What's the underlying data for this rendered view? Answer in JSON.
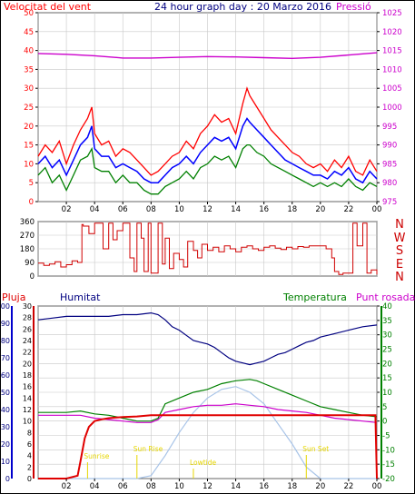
{
  "colors": {
    "wind_speed": "#ff0000",
    "wind_avg": "#0000ff",
    "wind_gust_low": "#008000",
    "pressure": "#cc00cc",
    "direction": "#d00000",
    "rain": "#e00000",
    "humidity": "#000080",
    "temperature": "#008000",
    "dew_point": "#cc00cc",
    "solar": "#a8c4e8",
    "sun_marks": "#e6d600",
    "grid": "#c8c8c8",
    "frame": "#000000"
  },
  "chart_data": [
    {
      "id": "wind",
      "type": "line",
      "title": "24 hour graph day : 20 Marzo 2016",
      "left_label": "Velocitat del vent",
      "right_label": "Pressió",
      "x_tick_labels": [
        "02",
        "04",
        "06",
        "08",
        "10",
        "12",
        "14",
        "16",
        "18",
        "20",
        "22",
        "00"
      ],
      "x_range_hours": [
        0,
        24
      ],
      "y_left_ticks": [
        "0",
        "5",
        "10",
        "15",
        "20",
        "25",
        "30",
        "35",
        "40",
        "45",
        "50"
      ],
      "y_left_range": [
        0,
        50
      ],
      "y_right_ticks": [
        "975",
        "980",
        "985",
        "990",
        "995",
        "1000",
        "1005",
        "1010",
        "1015",
        "1020",
        "1025"
      ],
      "y_right_range": [
        975,
        1025
      ],
      "grid": true,
      "series": [
        {
          "key": "gust",
          "x": [
            0,
            0.5,
            1,
            1.5,
            2,
            2.5,
            3,
            3.5,
            3.8,
            4,
            4.5,
            5,
            5.5,
            6,
            6.5,
            7,
            7.5,
            8,
            8.5,
            9,
            9.5,
            10,
            10.5,
            11,
            11.5,
            12,
            12.5,
            13,
            13.5,
            14,
            14.5,
            14.8,
            15,
            15.5,
            16,
            16.5,
            17,
            17.5,
            18,
            18.5,
            19,
            19.5,
            20,
            20.5,
            21,
            21.5,
            22,
            22.5,
            23,
            23.5,
            24
          ],
          "y": [
            12,
            15,
            13,
            16,
            10,
            15,
            19,
            22,
            25,
            18,
            15,
            16,
            12,
            14,
            13,
            11,
            9,
            7,
            8,
            10,
            12,
            13,
            16,
            14,
            18,
            20,
            23,
            21,
            22,
            18,
            26,
            30,
            28,
            25,
            22,
            19,
            17,
            15,
            13,
            12,
            10,
            9,
            10,
            8,
            11,
            9,
            12,
            8,
            7,
            11,
            8
          ]
        },
        {
          "key": "avg",
          "x": [
            0,
            0.5,
            1,
            1.5,
            2,
            2.5,
            3,
            3.5,
            3.8,
            4,
            4.5,
            5,
            5.5,
            6,
            6.5,
            7,
            7.5,
            8,
            8.5,
            9,
            9.5,
            10,
            10.5,
            11,
            11.5,
            12,
            12.5,
            13,
            13.5,
            14,
            14.5,
            14.8,
            15,
            15.5,
            16,
            16.5,
            17,
            17.5,
            18,
            18.5,
            19,
            19.5,
            20,
            20.5,
            21,
            21.5,
            22,
            22.5,
            23,
            23.5,
            24
          ],
          "y": [
            10,
            12,
            9,
            11,
            7,
            11,
            15,
            17,
            20,
            14,
            12,
            12,
            9,
            10,
            9,
            8,
            6,
            5,
            5,
            7,
            9,
            10,
            12,
            10,
            13,
            15,
            17,
            16,
            17,
            14,
            20,
            22,
            21,
            19,
            17,
            15,
            13,
            11,
            10,
            9,
            8,
            7,
            7,
            6,
            8,
            7,
            9,
            6,
            5,
            8,
            6
          ]
        },
        {
          "key": "low",
          "x": [
            0,
            0.5,
            1,
            1.5,
            2,
            2.5,
            3,
            3.5,
            3.8,
            4,
            4.5,
            5,
            5.5,
            6,
            6.5,
            7,
            7.5,
            8,
            8.5,
            9,
            9.5,
            10,
            10.5,
            11,
            11.5,
            12,
            12.5,
            13,
            13.5,
            14,
            14.5,
            14.8,
            15,
            15.5,
            16,
            16.5,
            17,
            17.5,
            18,
            18.5,
            19,
            19.5,
            20,
            20.5,
            21,
            21.5,
            22,
            22.5,
            23,
            23.5,
            24
          ],
          "y": [
            7,
            9,
            5,
            7,
            3,
            7,
            11,
            12,
            14,
            9,
            8,
            8,
            5,
            7,
            5,
            5,
            3,
            2,
            2,
            4,
            5,
            6,
            8,
            6,
            9,
            10,
            12,
            11,
            12,
            9,
            14,
            15,
            15,
            13,
            12,
            10,
            9,
            8,
            7,
            6,
            5,
            4,
            5,
            4,
            5,
            4,
            6,
            4,
            3,
            5,
            4
          ]
        },
        {
          "key": "pressure",
          "x": [
            0,
            2,
            4,
            6,
            8,
            10,
            12,
            14,
            16,
            18,
            20,
            22,
            24
          ],
          "y": [
            1014.2,
            1014.0,
            1013.6,
            1013.0,
            1013.0,
            1013.2,
            1013.4,
            1013.3,
            1013.1,
            1012.9,
            1013.2,
            1013.8,
            1014.4
          ]
        }
      ]
    },
    {
      "id": "direction",
      "type": "line",
      "title": "",
      "y_left_ticks": [
        "360",
        "270",
        "180",
        "90",
        "0"
      ],
      "y_left_range": [
        0,
        360
      ],
      "y_right_labels": [
        "N",
        "W",
        "S",
        "E",
        "N"
      ],
      "x_tick_labels": [
        "02",
        "04",
        "06",
        "08",
        "10",
        "12",
        "14",
        "16",
        "18",
        "20",
        "22",
        "00"
      ],
      "series": [
        {
          "key": "direction",
          "x": [
            0,
            0.4,
            0.8,
            1.2,
            1.6,
            2,
            2.4,
            2.8,
            3.1,
            3.2,
            3.6,
            4,
            4.3,
            4.6,
            5,
            5.3,
            5.6,
            6,
            6.2,
            6.5,
            6.8,
            7,
            7.3,
            7.5,
            7.8,
            8,
            8.3,
            8.5,
            8.8,
            9,
            9.3,
            9.6,
            10,
            10.3,
            10.6,
            11,
            11.3,
            11.6,
            12,
            12.4,
            12.8,
            13.2,
            13.6,
            14,
            14.4,
            14.8,
            15.2,
            15.6,
            16,
            16.4,
            16.8,
            17.2,
            17.6,
            18,
            18.4,
            18.8,
            19.2,
            19.6,
            20,
            20.4,
            20.8,
            21,
            21.3,
            21.6,
            22,
            22.3,
            22.6,
            23,
            23.3,
            23.6,
            24
          ],
          "y": [
            85,
            70,
            80,
            95,
            60,
            75,
            100,
            90,
            340,
            330,
            280,
            350,
            350,
            180,
            350,
            240,
            300,
            350,
            350,
            120,
            30,
            350,
            250,
            30,
            350,
            20,
            20,
            350,
            80,
            250,
            50,
            150,
            110,
            60,
            230,
            170,
            120,
            210,
            170,
            190,
            160,
            200,
            180,
            160,
            190,
            200,
            180,
            170,
            190,
            200,
            185,
            175,
            190,
            180,
            195,
            190,
            200,
            200,
            200,
            180,
            120,
            30,
            10,
            20,
            20,
            350,
            200,
            350,
            20,
            40,
            10
          ]
        }
      ]
    },
    {
      "id": "weather",
      "type": "line",
      "title": "",
      "labels": {
        "rain": "Pluja",
        "humidity": "Humitat",
        "temperature": "Temperatura",
        "dew_point": "Punt rosada"
      },
      "x_tick_labels": [
        "02",
        "04",
        "06",
        "08",
        "10",
        "12",
        "14",
        "16",
        "18",
        "20",
        "22",
        "00"
      ],
      "y_humidity_ticks": [
        "0",
        "10",
        "20",
        "30",
        "40",
        "50",
        "60",
        "70",
        "80",
        "90",
        "100"
      ],
      "y_humidity_range": [
        0,
        100
      ],
      "y_rain_ticks": [
        "0",
        "2",
        "4",
        "6",
        "8",
        "10",
        "12",
        "14",
        "16",
        "18",
        "20",
        "22",
        "24",
        "26",
        "28",
        "30"
      ],
      "y_rain_range": [
        0,
        30
      ],
      "y_temp_ticks": [
        "-20",
        "-15",
        "-10",
        "-5",
        "0",
        "5",
        "10",
        "15",
        "20",
        "25",
        "30",
        "35",
        "40"
      ],
      "y_temp_range": [
        -20,
        40
      ],
      "annotations": [
        "Sunrise",
        "Sun Rise",
        "Lowtide",
        "Sun Set"
      ],
      "grid": true,
      "series": [
        {
          "key": "rain",
          "x": [
            0,
            1,
            2,
            2.8,
            3,
            3.3,
            3.6,
            4,
            4.5,
            5,
            6,
            7,
            8,
            10,
            12,
            14,
            16,
            18,
            20,
            22,
            23.9,
            24
          ],
          "y": [
            0,
            0,
            0,
            0.5,
            3,
            7,
            9,
            10,
            10.3,
            10.5,
            10.7,
            10.8,
            11,
            11,
            11,
            11,
            11,
            11,
            11,
            11,
            11,
            0
          ]
        },
        {
          "key": "humidity",
          "x": [
            0,
            1,
            2,
            3,
            4,
            5,
            6,
            7,
            8,
            8.5,
            9,
            9.5,
            10,
            10.5,
            11,
            11.5,
            12,
            12.5,
            13,
            13.5,
            14,
            14.5,
            15,
            15.5,
            16,
            16.5,
            17,
            17.5,
            18,
            18.5,
            19,
            19.5,
            20,
            21,
            22,
            23,
            24
          ],
          "y": [
            92,
            93,
            94,
            94,
            94,
            94,
            95,
            95,
            96,
            95,
            92,
            88,
            86,
            83,
            80,
            79,
            78,
            76,
            73,
            70,
            68,
            67,
            66,
            67,
            68,
            70,
            72,
            73,
            75,
            77,
            79,
            80,
            82,
            84,
            86,
            88,
            89
          ]
        },
        {
          "key": "temperature",
          "x": [
            0,
            1,
            2,
            3,
            4,
            5,
            6,
            7,
            8,
            8.5,
            9,
            10,
            11,
            12,
            13,
            14,
            15,
            15.5,
            16,
            17,
            18,
            19,
            20,
            21,
            22,
            23,
            24
          ],
          "y": [
            3,
            3,
            3,
            3.5,
            2.5,
            2,
            1,
            0,
            0,
            1,
            6,
            8,
            10,
            11,
            13,
            14,
            14.5,
            14,
            13,
            11,
            9,
            7,
            5,
            4,
            3,
            2,
            1.5
          ]
        },
        {
          "key": "dew_point",
          "x": [
            0,
            1,
            2,
            3,
            4,
            5,
            6,
            7,
            8,
            8.5,
            9,
            10,
            11,
            12,
            13,
            14,
            15,
            16,
            17,
            18,
            19,
            20,
            21,
            22,
            23,
            24
          ],
          "y": [
            2,
            2,
            2,
            2,
            1,
            0.5,
            0,
            -0.5,
            -0.5,
            0.5,
            3,
            4,
            5,
            5.5,
            5.5,
            6,
            5.5,
            5,
            4,
            3.5,
            3,
            2,
            1,
            0.5,
            0,
            -0.5
          ]
        },
        {
          "key": "solar",
          "x": [
            0,
            6.5,
            7,
            8,
            9,
            10,
            11,
            12,
            13,
            14,
            15,
            16,
            17,
            18,
            19,
            20,
            24
          ],
          "y": [
            -20,
            -20,
            -20,
            -19,
            -12,
            -4,
            3,
            8,
            11,
            12,
            10,
            6,
            -1,
            -8,
            -16,
            -20,
            -20
          ]
        }
      ]
    }
  ]
}
